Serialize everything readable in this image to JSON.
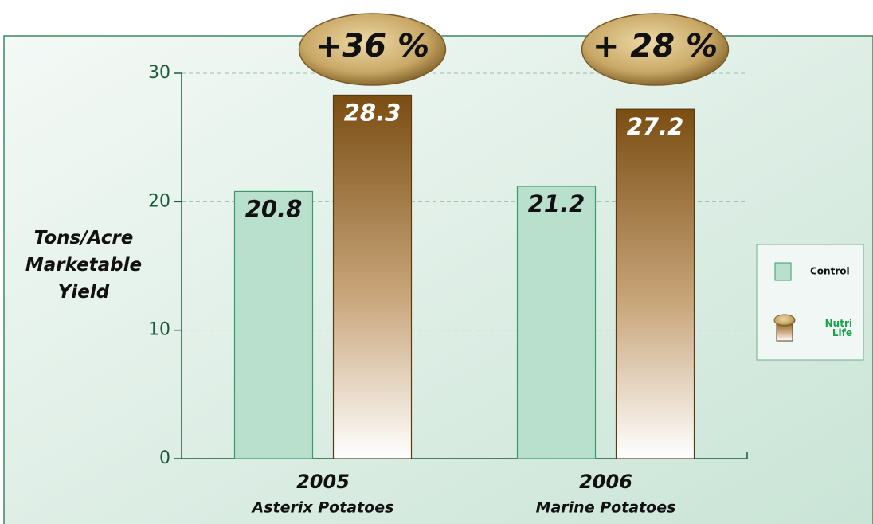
{
  "chart_data": {
    "type": "bar",
    "y_label": "Tons/Acre Marketable Yield",
    "categories": [
      "2005",
      "2006"
    ],
    "category_sublabels": [
      "Asterix Potatoes",
      "Marine Potatoes"
    ],
    "series": [
      {
        "name": "Control",
        "color": "#b9e0cd",
        "values": [
          20.8,
          21.2
        ]
      },
      {
        "name": "Nutri Life",
        "color": "#7a4d12",
        "values": [
          28.3,
          27.2
        ]
      }
    ],
    "annotations": [
      "+36 %",
      "+ 28 %"
    ],
    "ylim": [
      0,
      30
    ],
    "yticks": [
      0,
      10,
      20,
      30
    ],
    "grid": true
  }
}
